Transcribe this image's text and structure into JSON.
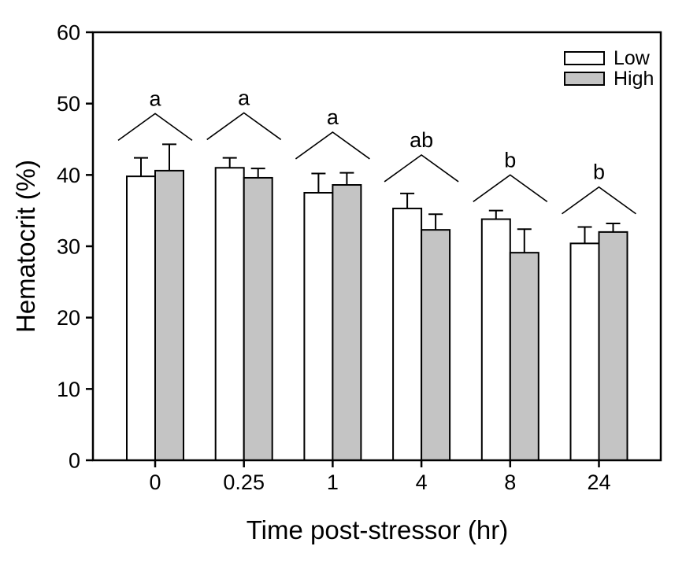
{
  "chart_data": {
    "type": "bar",
    "title": "",
    "xlabel": "Time post-stressor (hr)",
    "ylabel": "Hematocrit (%)",
    "categories": [
      "0",
      "0.25",
      "1",
      "4",
      "8",
      "24"
    ],
    "series": [
      {
        "name": "Low",
        "fill": "#ffffff",
        "values": [
          39.8,
          41.0,
          37.5,
          35.3,
          33.8,
          30.4
        ],
        "errors_up": [
          2.6,
          1.4,
          2.7,
          2.1,
          1.2,
          2.3
        ]
      },
      {
        "name": "High",
        "fill": "#c4c4c4",
        "values": [
          40.6,
          39.6,
          38.6,
          32.3,
          29.1,
          32.0
        ],
        "errors_up": [
          3.7,
          1.3,
          1.7,
          2.2,
          3.3,
          1.2
        ]
      }
    ],
    "ylim": [
      0,
      60
    ],
    "yticks": [
      0,
      10,
      20,
      30,
      40,
      50,
      60
    ],
    "sig_marks": [
      {
        "letter": "a",
        "apex": 48.6
      },
      {
        "letter": "a",
        "apex": 48.7
      },
      {
        "letter": "a",
        "apex": 46.0
      },
      {
        "letter": "ab",
        "apex": 42.8
      },
      {
        "letter": "b",
        "apex": 40.0
      },
      {
        "letter": "b",
        "apex": 38.3
      }
    ],
    "legend": {
      "position": "top-right",
      "entries": [
        {
          "label": "Low",
          "fill": "#ffffff"
        },
        {
          "label": "High",
          "fill": "#c4c4c4"
        }
      ]
    },
    "grid": false,
    "colors": {
      "axis": "#000000",
      "bar_outline": "#000000",
      "error_bar": "#000000",
      "sig_caret": "#000000",
      "background": "#ffffff"
    }
  }
}
